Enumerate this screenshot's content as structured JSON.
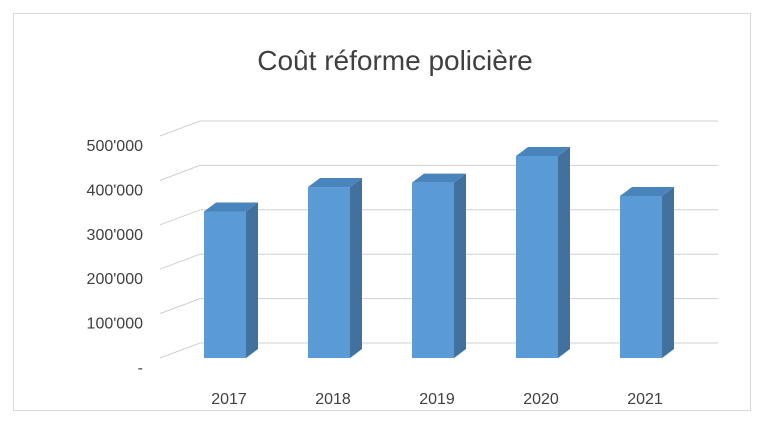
{
  "chart_data": {
    "type": "bar3d",
    "title": "Coût réforme policière",
    "categories": [
      "2017",
      "2018",
      "2019",
      "2020",
      "2021"
    ],
    "values": [
      330000,
      385000,
      395000,
      455000,
      365000
    ],
    "color": "#5b9bd5",
    "ylim": [
      0,
      500000
    ],
    "yticks": [
      {
        "value": 0,
        "label": "-"
      },
      {
        "value": 100000,
        "label": "100'000"
      },
      {
        "value": 200000,
        "label": "200'000"
      },
      {
        "value": 300000,
        "label": "300'000"
      },
      {
        "value": 400000,
        "label": "400'000"
      },
      {
        "value": 500000,
        "label": "500'000"
      }
    ],
    "grid": true
  }
}
